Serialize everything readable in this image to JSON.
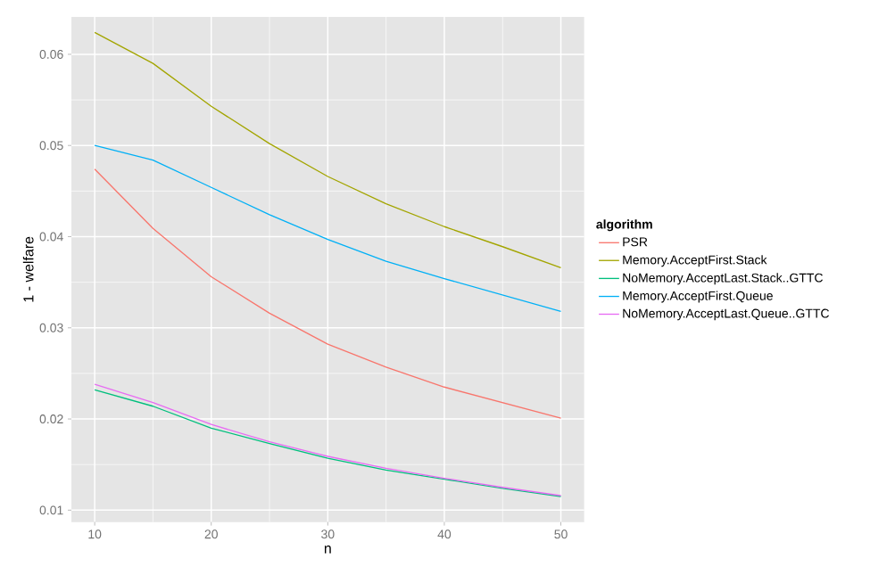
{
  "chart_data": {
    "type": "line",
    "xlabel": "n",
    "ylabel": "1 - welfare",
    "legend_title": "algorithm",
    "legend": "right",
    "grid": true,
    "x": [
      10,
      15,
      20,
      25,
      30,
      35,
      40,
      45,
      50
    ],
    "xlim": [
      8,
      52
    ],
    "xticks": [
      10,
      20,
      30,
      40,
      50
    ],
    "ylim": [
      0.0087,
      0.0641
    ],
    "yticks": [
      0.01,
      0.02,
      0.03,
      0.04,
      0.05,
      0.06
    ],
    "series": [
      {
        "name": "PSR",
        "color": "#f8766d",
        "values": [
          0.0474,
          0.0409,
          0.0356,
          0.0316,
          0.0282,
          0.0257,
          0.0235,
          0.0218,
          0.0201
        ]
      },
      {
        "name": "Memory.AcceptFirst.Stack",
        "color": "#a3a500",
        "values": [
          0.0624,
          0.059,
          0.0543,
          0.0502,
          0.0466,
          0.0436,
          0.0411,
          0.0389,
          0.0366
        ]
      },
      {
        "name": "NoMemory.AcceptLast.Stack..GTTC",
        "color": "#00bf7d",
        "values": [
          0.0232,
          0.0214,
          0.019,
          0.0173,
          0.0157,
          0.0144,
          0.0134,
          0.0124,
          0.0115
        ]
      },
      {
        "name": "Memory.AcceptFirst.Queue",
        "color": "#00b0f6",
        "values": [
          0.05,
          0.0484,
          0.0454,
          0.0424,
          0.0397,
          0.0373,
          0.0354,
          0.0336,
          0.0318
        ]
      },
      {
        "name": "NoMemory.AcceptLast.Queue..GTTC",
        "color": "#e76bf3",
        "values": [
          0.0238,
          0.0218,
          0.0194,
          0.0175,
          0.0159,
          0.0146,
          0.0135,
          0.0125,
          0.0116
        ]
      }
    ]
  }
}
